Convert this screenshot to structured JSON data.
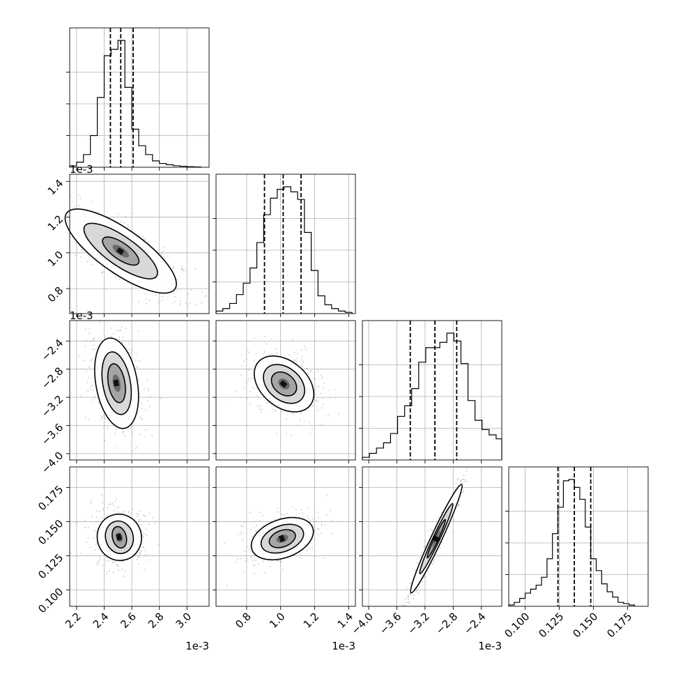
{
  "chart_data": {
    "type": "corner",
    "parameters": 4,
    "histograms": [
      {
        "xlim": [
          0.00215,
          0.00316
        ],
        "quantile_lines": [
          0.002445,
          0.00252,
          0.00261
        ],
        "bins": [
          0.00215,
          0.0022,
          0.00225,
          0.0023,
          0.00235,
          0.0024,
          0.00245,
          0.0025,
          0.00255,
          0.0026,
          0.00265,
          0.0027,
          0.00275,
          0.0028,
          0.00285,
          0.0029,
          0.00295,
          0.003,
          0.00305
        ],
        "counts": [
          0.01,
          0.04,
          0.1,
          0.25,
          0.55,
          0.88,
          0.93,
          1.0,
          0.63,
          0.3,
          0.17,
          0.1,
          0.05,
          0.03,
          0.02,
          0.012,
          0.008,
          0.004,
          0.002
        ],
        "x_ticks": [
          "2.2",
          "2.4",
          "2.6",
          "2.8",
          "3.0"
        ],
        "x_tick_values": [
          0.0022,
          0.0024,
          0.0026,
          0.0028,
          0.003
        ],
        "x_offset_label": "1e-3"
      },
      {
        "xlim": [
          0.00062,
          0.00144
        ],
        "quantile_lines": [
          0.000905,
          0.001015,
          0.00112
        ],
        "bins": [
          0.00062,
          0.00066,
          0.0007,
          0.00074,
          0.00078,
          0.00082,
          0.00086,
          0.0009,
          0.00094,
          0.00098,
          0.00102,
          0.00106,
          0.0011,
          0.00114,
          0.00118,
          0.00122,
          0.00126,
          0.0013,
          0.00134,
          0.00138
        ],
        "counts": [
          0.02,
          0.04,
          0.08,
          0.15,
          0.24,
          0.36,
          0.56,
          0.78,
          0.91,
          0.98,
          1.0,
          0.96,
          0.9,
          0.64,
          0.34,
          0.14,
          0.07,
          0.04,
          0.02,
          0.01
        ],
        "x_ticks": [
          "0.8",
          "1.0",
          "1.2",
          "1.4"
        ],
        "x_tick_values": [
          0.0008,
          0.001,
          0.0012,
          0.0014
        ],
        "x_offset_label": "1e-3"
      },
      {
        "xlim": [
          -0.00409,
          -0.00211
        ],
        "quantile_lines": [
          -0.00341,
          -0.00306,
          -0.00275
        ],
        "bins": [
          -0.00409,
          -0.00399,
          -0.00389,
          -0.00379,
          -0.00369,
          -0.00359,
          -0.00349,
          -0.00339,
          -0.00329,
          -0.00319,
          -0.00309,
          -0.00299,
          -0.00289,
          -0.00279,
          -0.00269,
          -0.00259,
          -0.00249,
          -0.00239,
          -0.00229,
          -0.00219
        ],
        "counts": [
          0.02,
          0.05,
          0.09,
          0.13,
          0.2,
          0.33,
          0.41,
          0.54,
          0.74,
          0.85,
          0.85,
          0.89,
          0.96,
          0.9,
          0.73,
          0.45,
          0.3,
          0.23,
          0.19,
          0.16
        ],
        "x_ticks": [
          "-4.0",
          "-3.6",
          "-3.2",
          "-2.8",
          "-2.4"
        ],
        "x_tick_values": [
          -0.004,
          -0.0036,
          -0.0032,
          -0.0028,
          -0.0024
        ],
        "x_offset_label": "1e-3"
      },
      {
        "xlim": [
          0.088,
          0.19
        ],
        "quantile_lines": [
          0.124,
          0.136,
          0.148
        ],
        "bins": [
          0.088,
          0.092,
          0.096,
          0.1,
          0.104,
          0.108,
          0.112,
          0.116,
          0.12,
          0.124,
          0.128,
          0.132,
          0.136,
          0.14,
          0.144,
          0.148,
          0.152,
          0.156,
          0.16,
          0.164,
          0.168,
          0.172,
          0.176
        ],
        "counts": [
          0.01,
          0.03,
          0.06,
          0.1,
          0.13,
          0.16,
          0.22,
          0.36,
          0.55,
          0.75,
          0.95,
          0.96,
          0.9,
          0.81,
          0.6,
          0.36,
          0.27,
          0.17,
          0.11,
          0.07,
          0.03,
          0.02,
          0.01
        ],
        "x_ticks": [
          "0.100",
          "0.125",
          "0.150",
          "0.175"
        ],
        "x_tick_values": [
          0.1,
          0.125,
          0.15,
          0.175
        ],
        "x_offset_label": ""
      }
    ],
    "scatter_panels": [
      {
        "row": 1,
        "col": 0,
        "x_param": 0,
        "y_param": 1,
        "ylim": [
          0.00066,
          0.00144
        ],
        "y_ticks": [
          "0.8",
          "1.0",
          "1.2",
          "1.4"
        ],
        "y_tick_values": [
          0.0008,
          0.001,
          0.0012,
          0.0014
        ],
        "y_offset_label": "1e-3",
        "center": [
          0.00252,
          0.00101
        ],
        "contour_scales": [
          [
            6e-05,
            0.00012
          ],
          [
            0.000105,
            0.000245
          ],
          [
            0.00016,
            0.00037
          ]
        ],
        "rotation_deg": -55
      },
      {
        "row": 2,
        "col": 0,
        "x_param": 0,
        "y_param": 2,
        "ylim": [
          -0.00409,
          -0.00211
        ],
        "y_ticks": [
          "-4.0",
          "-3.6",
          "-3.2",
          "-2.8",
          "-2.4"
        ],
        "y_tick_values": [
          -0.004,
          -0.0036,
          -0.0032,
          -0.0028,
          -0.0024
        ],
        "y_offset_label": "1e-3",
        "center": [
          0.00249,
          -0.003
        ],
        "contour_scales": [
          [
            6e-05,
            0.00028
          ],
          [
            0.0001,
            0.00045
          ],
          [
            0.00015,
            0.00065
          ]
        ],
        "rotation_deg": -10
      },
      {
        "row": 3,
        "col": 0,
        "x_param": 0,
        "y_param": 3,
        "ylim": [
          0.088,
          0.19
        ],
        "y_ticks": [
          "0.100",
          "0.125",
          "0.150",
          "0.175"
        ],
        "y_tick_values": [
          0.1,
          0.125,
          0.15,
          0.175
        ],
        "y_offset_label": "",
        "center": [
          0.00251,
          0.1385
        ],
        "contour_scales": [
          [
            5e-05,
            0.008
          ],
          [
            0.0001,
            0.012
          ],
          [
            0.00016,
            0.017
          ]
        ],
        "rotation_deg": -15
      },
      {
        "row": 2,
        "col": 1,
        "x_param": 1,
        "y_param": 2,
        "ylim": [
          -0.00409,
          -0.00211
        ],
        "y_ticks": [],
        "y_tick_values": [],
        "y_offset_label": "",
        "center": [
          0.00102,
          -0.00301
        ],
        "contour_scales": [
          [
            6e-05,
            0.0002
          ],
          [
            9.5e-05,
            0.00033
          ],
          [
            0.000135,
            0.00048
          ]
        ],
        "rotation_deg": -50
      },
      {
        "row": 3,
        "col": 1,
        "x_param": 1,
        "y_param": 3,
        "ylim": [
          0.088,
          0.19
        ],
        "y_ticks": [],
        "y_tick_values": [],
        "y_offset_label": "",
        "center": [
          0.00101,
          0.1375
        ],
        "contour_scales": [
          [
            8e-05,
            0.006
          ],
          [
            0.00013,
            0.0095
          ],
          [
            0.00019,
            0.014
          ]
        ],
        "rotation_deg": -20
      },
      {
        "row": 3,
        "col": 2,
        "x_param": 2,
        "y_param": 3,
        "ylim": [
          0.088,
          0.19
        ],
        "y_ticks": [],
        "y_tick_values": [],
        "y_offset_label": "",
        "center": [
          -0.00304,
          0.1375
        ],
        "contour_scales": [
          [
            0.0003,
            0.0015
          ],
          [
            0.00055,
            0.0025
          ],
          [
            0.00085,
            0.004
          ]
        ],
        "rotation_deg": -65
      }
    ]
  }
}
